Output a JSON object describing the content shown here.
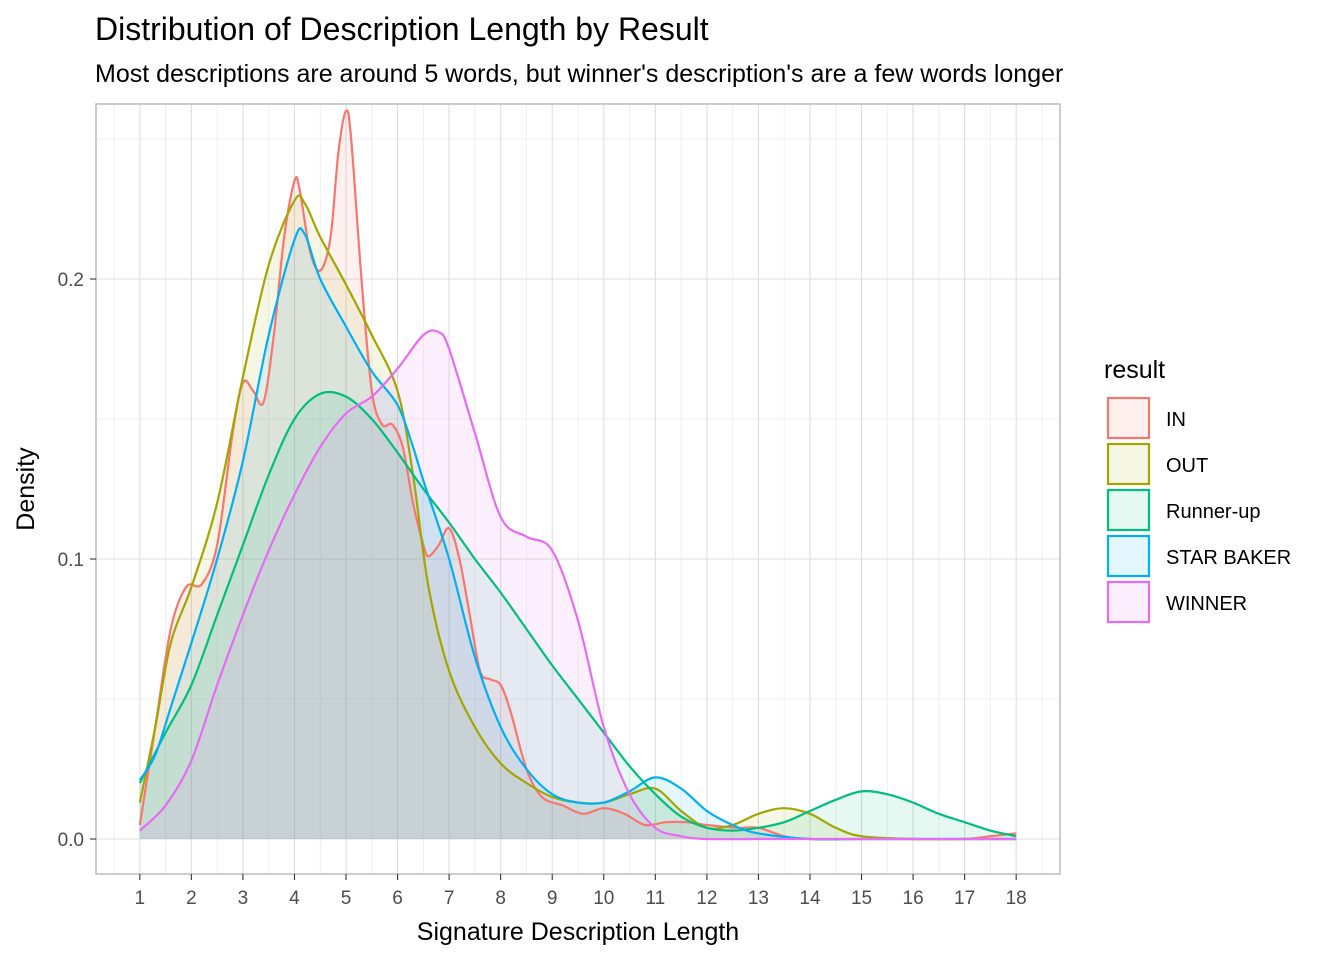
{
  "chart_data": {
    "type": "area",
    "title": "Distribution of Description Length by Result",
    "subtitle": "Most descriptions are around 5 words, but winner's description's are a few words longer",
    "xlabel": "Signature Description Length",
    "ylabel": "Density",
    "xlim": [
      0.15,
      18.85
    ],
    "ylim": [
      -0.0125,
      0.2625
    ],
    "x_ticks": [
      1,
      2,
      3,
      4,
      5,
      6,
      7,
      8,
      9,
      10,
      11,
      12,
      13,
      14,
      15,
      16,
      17,
      18
    ],
    "y_ticks": [
      0.0,
      0.1,
      0.2
    ],
    "y_tick_labels": [
      "0.0",
      "0.1",
      "0.2"
    ],
    "grid": true,
    "legend": {
      "title": "result",
      "position": "right"
    },
    "series": [
      {
        "name": "IN",
        "color": "#F8766D",
        "points": [
          [
            1,
            0.005
          ],
          [
            1.3,
            0.04
          ],
          [
            1.6,
            0.075
          ],
          [
            1.9,
            0.09
          ],
          [
            2.2,
            0.091
          ],
          [
            2.5,
            0.105
          ],
          [
            2.8,
            0.145
          ],
          [
            3.0,
            0.163
          ],
          [
            3.2,
            0.16
          ],
          [
            3.4,
            0.156
          ],
          [
            3.6,
            0.18
          ],
          [
            3.8,
            0.215
          ],
          [
            4.0,
            0.235
          ],
          [
            4.1,
            0.232
          ],
          [
            4.3,
            0.21
          ],
          [
            4.5,
            0.203
          ],
          [
            4.7,
            0.215
          ],
          [
            4.85,
            0.245
          ],
          [
            5.0,
            0.26
          ],
          [
            5.1,
            0.25
          ],
          [
            5.3,
            0.2
          ],
          [
            5.5,
            0.16
          ],
          [
            5.7,
            0.148
          ],
          [
            5.9,
            0.148
          ],
          [
            6.1,
            0.14
          ],
          [
            6.3,
            0.12
          ],
          [
            6.5,
            0.105
          ],
          [
            6.6,
            0.101
          ],
          [
            6.8,
            0.105
          ],
          [
            7.0,
            0.111
          ],
          [
            7.2,
            0.1
          ],
          [
            7.4,
            0.08
          ],
          [
            7.6,
            0.06
          ],
          [
            7.8,
            0.057
          ],
          [
            8.0,
            0.055
          ],
          [
            8.2,
            0.045
          ],
          [
            8.5,
            0.025
          ],
          [
            8.8,
            0.015
          ],
          [
            9.2,
            0.012
          ],
          [
            9.6,
            0.009
          ],
          [
            10.0,
            0.011
          ],
          [
            10.4,
            0.009
          ],
          [
            10.8,
            0.005
          ],
          [
            11.2,
            0.006
          ],
          [
            11.6,
            0.006
          ],
          [
            12.0,
            0.005
          ],
          [
            12.6,
            0.004
          ],
          [
            13.0,
            0.004
          ],
          [
            13.5,
            0.001
          ],
          [
            14.0,
            0.0
          ],
          [
            15.0,
            0.0
          ],
          [
            16.0,
            0.0
          ],
          [
            17.0,
            0.0
          ],
          [
            17.5,
            0.001
          ],
          [
            18.0,
            0.002
          ]
        ]
      },
      {
        "name": "OUT",
        "color": "#A3A500",
        "points": [
          [
            1,
            0.013
          ],
          [
            1.3,
            0.04
          ],
          [
            1.6,
            0.07
          ],
          [
            2.0,
            0.09
          ],
          [
            2.5,
            0.12
          ],
          [
            3.0,
            0.165
          ],
          [
            3.5,
            0.205
          ],
          [
            4.0,
            0.228
          ],
          [
            4.2,
            0.227
          ],
          [
            4.5,
            0.215
          ],
          [
            5.0,
            0.198
          ],
          [
            5.5,
            0.18
          ],
          [
            6.0,
            0.16
          ],
          [
            6.3,
            0.13
          ],
          [
            6.6,
            0.09
          ],
          [
            7.0,
            0.06
          ],
          [
            7.5,
            0.04
          ],
          [
            8.0,
            0.027
          ],
          [
            8.5,
            0.02
          ],
          [
            9.0,
            0.015
          ],
          [
            9.5,
            0.013
          ],
          [
            10.0,
            0.013
          ],
          [
            10.5,
            0.016
          ],
          [
            11.0,
            0.018
          ],
          [
            11.5,
            0.01
          ],
          [
            12.0,
            0.004
          ],
          [
            12.5,
            0.005
          ],
          [
            13.0,
            0.009
          ],
          [
            13.5,
            0.011
          ],
          [
            14.0,
            0.009
          ],
          [
            14.5,
            0.004
          ],
          [
            15.0,
            0.001
          ],
          [
            16.0,
            0.0
          ],
          [
            17.0,
            0.0
          ],
          [
            18.0,
            0.0
          ]
        ]
      },
      {
        "name": "Runner-up",
        "color": "#00BF7D",
        "points": [
          [
            1,
            0.02
          ],
          [
            1.5,
            0.038
          ],
          [
            2.0,
            0.055
          ],
          [
            2.5,
            0.08
          ],
          [
            3.0,
            0.105
          ],
          [
            3.5,
            0.13
          ],
          [
            4.0,
            0.15
          ],
          [
            4.5,
            0.159
          ],
          [
            5.0,
            0.158
          ],
          [
            5.5,
            0.15
          ],
          [
            6.0,
            0.138
          ],
          [
            6.5,
            0.125
          ],
          [
            7.0,
            0.113
          ],
          [
            7.5,
            0.1
          ],
          [
            8.0,
            0.088
          ],
          [
            8.5,
            0.075
          ],
          [
            9.0,
            0.062
          ],
          [
            9.5,
            0.05
          ],
          [
            10.0,
            0.038
          ],
          [
            10.5,
            0.026
          ],
          [
            11.0,
            0.016
          ],
          [
            11.5,
            0.008
          ],
          [
            12.0,
            0.004
          ],
          [
            12.5,
            0.003
          ],
          [
            13.0,
            0.004
          ],
          [
            13.5,
            0.006
          ],
          [
            14.0,
            0.01
          ],
          [
            14.5,
            0.014
          ],
          [
            15.0,
            0.017
          ],
          [
            15.5,
            0.016
          ],
          [
            16.0,
            0.013
          ],
          [
            16.5,
            0.009
          ],
          [
            17.0,
            0.006
          ],
          [
            17.5,
            0.003
          ],
          [
            18.0,
            0.001
          ]
        ]
      },
      {
        "name": "STAR BAKER",
        "color": "#00B0F6",
        "points": [
          [
            1,
            0.021
          ],
          [
            1.3,
            0.03
          ],
          [
            1.6,
            0.047
          ],
          [
            2.0,
            0.07
          ],
          [
            2.5,
            0.1
          ],
          [
            3.0,
            0.135
          ],
          [
            3.5,
            0.18
          ],
          [
            4.0,
            0.214
          ],
          [
            4.2,
            0.216
          ],
          [
            4.5,
            0.2
          ],
          [
            5.0,
            0.183
          ],
          [
            5.5,
            0.167
          ],
          [
            6.0,
            0.155
          ],
          [
            6.3,
            0.14
          ],
          [
            6.5,
            0.128
          ],
          [
            7.0,
            0.1
          ],
          [
            7.5,
            0.065
          ],
          [
            8.0,
            0.04
          ],
          [
            8.5,
            0.025
          ],
          [
            9.0,
            0.016
          ],
          [
            9.5,
            0.013
          ],
          [
            10.0,
            0.013
          ],
          [
            10.5,
            0.017
          ],
          [
            11.0,
            0.022
          ],
          [
            11.5,
            0.018
          ],
          [
            12.0,
            0.01
          ],
          [
            12.5,
            0.005
          ],
          [
            13.0,
            0.002
          ],
          [
            14.0,
            0.0
          ],
          [
            15.0,
            0.0
          ],
          [
            16.0,
            0.0
          ],
          [
            17.0,
            0.0
          ],
          [
            18.0,
            0.0
          ]
        ]
      },
      {
        "name": "WINNER",
        "color": "#E76BF3",
        "points": [
          [
            1,
            0.003
          ],
          [
            1.5,
            0.012
          ],
          [
            2.0,
            0.028
          ],
          [
            2.5,
            0.055
          ],
          [
            3.0,
            0.08
          ],
          [
            3.5,
            0.103
          ],
          [
            4.0,
            0.123
          ],
          [
            4.5,
            0.14
          ],
          [
            5.0,
            0.152
          ],
          [
            5.5,
            0.158
          ],
          [
            6.0,
            0.168
          ],
          [
            6.5,
            0.18
          ],
          [
            6.8,
            0.181
          ],
          [
            7.0,
            0.175
          ],
          [
            7.5,
            0.145
          ],
          [
            8.0,
            0.115
          ],
          [
            8.5,
            0.108
          ],
          [
            9.0,
            0.103
          ],
          [
            9.5,
            0.078
          ],
          [
            10.0,
            0.04
          ],
          [
            10.5,
            0.016
          ],
          [
            11.0,
            0.004
          ],
          [
            11.5,
            0.001
          ],
          [
            12.0,
            0.0
          ],
          [
            13.0,
            0.0
          ],
          [
            14.0,
            0.0
          ],
          [
            15.0,
            0.0
          ],
          [
            16.0,
            0.0
          ],
          [
            17.0,
            0.0
          ],
          [
            18.0,
            0.0
          ]
        ]
      }
    ]
  }
}
